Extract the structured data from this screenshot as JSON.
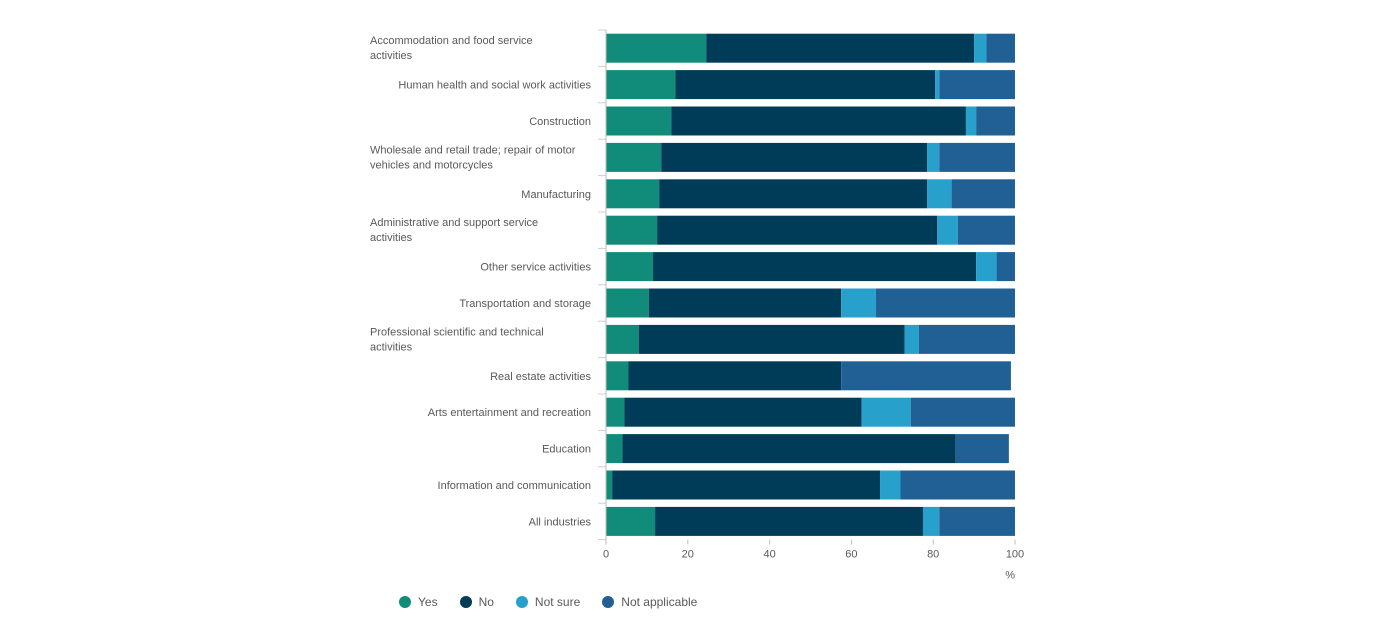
{
  "chart_data": {
    "type": "bar",
    "orientation": "horizontal",
    "stacked": true,
    "categories": [
      "Accommodation and food service activities",
      "Human health and social work activities",
      "Construction",
      "Wholesale and retail trade; repair of motor vehicles and motorcycles",
      "Manufacturing",
      "Administrative and support service activities",
      "Other service activities",
      "Transportation and storage",
      "Professional scientific and technical activities",
      "Real estate activities",
      "Arts entertainment and recreation",
      "Education",
      "Information and communication",
      "All industries"
    ],
    "category_lines": [
      [
        "Accommodation and food service",
        "activities"
      ],
      [
        "Human health and social work activities"
      ],
      [
        "Construction"
      ],
      [
        "Wholesale and retail trade; repair of motor",
        "vehicles and motorcycles"
      ],
      [
        "Manufacturing"
      ],
      [
        "Administrative and support service",
        "activities"
      ],
      [
        "Other service activities"
      ],
      [
        "Transportation and storage"
      ],
      [
        "Professional scientific and technical",
        "activities"
      ],
      [
        "Real estate activities"
      ],
      [
        "Arts entertainment and recreation"
      ],
      [
        "Education"
      ],
      [
        "Information and communication"
      ],
      [
        "All industries"
      ]
    ],
    "series": [
      {
        "name": "Yes",
        "color": "#118c7b",
        "values": [
          24.5,
          17,
          16,
          13.5,
          13,
          12.5,
          11.5,
          10.5,
          8,
          5.5,
          4.5,
          4,
          1.5,
          12
        ]
      },
      {
        "name": "No",
        "color": "#003c57",
        "values": [
          65.5,
          63.5,
          72,
          65,
          65.5,
          68.5,
          79,
          47,
          65,
          52,
          58,
          81.5,
          65.5,
          65.5
        ]
      },
      {
        "name": "Not sure",
        "color": "#27a0cc",
        "values": [
          3,
          1,
          2.5,
          3,
          6,
          5,
          5,
          8.5,
          3.5,
          0,
          12,
          0,
          5,
          4
        ]
      },
      {
        "name": "Not applicable",
        "color": "#206095",
        "values": [
          7,
          18.5,
          9.5,
          18.5,
          15.5,
          14,
          4.5,
          34,
          23.5,
          41.5,
          25.5,
          13,
          28,
          18.5
        ]
      }
    ],
    "xlim": [
      0,
      100
    ],
    "xticks": [
      "0",
      "20",
      "40",
      "60",
      "80",
      "100"
    ],
    "xlabel": "%",
    "legend_position": "bottom-left"
  }
}
